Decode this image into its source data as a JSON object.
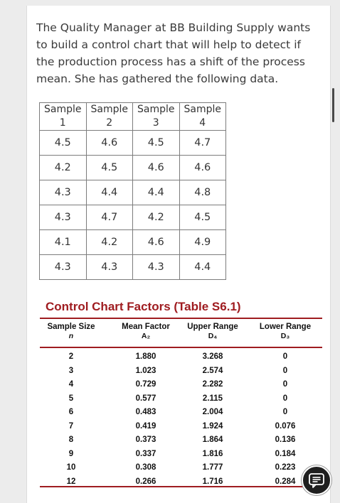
{
  "intro_text": "The Quality Manager at BB Building Supply wants to build a control chart that will help to detect if the production process has a shift of the process mean. She has gathered the following data.",
  "sample_table": {
    "header_top": [
      "Sample",
      "Sample",
      "Sample",
      "Sample"
    ],
    "header_bottom": [
      "1",
      "2",
      "3",
      "4"
    ],
    "rows": [
      [
        "4.5",
        "4.6",
        "4.5",
        "4.7"
      ],
      [
        "4.2",
        "4.5",
        "4.6",
        "4.6"
      ],
      [
        "4.3",
        "4.4",
        "4.4",
        "4.8"
      ],
      [
        "4.3",
        "4.7",
        "4.2",
        "4.5"
      ],
      [
        "4.1",
        "4.2",
        "4.6",
        "4.9"
      ],
      [
        "4.3",
        "4.3",
        "4.3",
        "4.4"
      ]
    ]
  },
  "factors": {
    "title": "Control Chart Factors (Table S6.1)",
    "headers": [
      {
        "label": "Sample Size",
        "symbol": "n"
      },
      {
        "label": "Mean Factor",
        "symbol": "A₂"
      },
      {
        "label": "Upper Range",
        "symbol": "D₄"
      },
      {
        "label": "Lower Range",
        "symbol": "D₃"
      }
    ],
    "rows": [
      [
        "2",
        "1.880",
        "3.268",
        "0"
      ],
      [
        "3",
        "1.023",
        "2.574",
        "0"
      ],
      [
        "4",
        "0.729",
        "2.282",
        "0"
      ],
      [
        "5",
        "0.577",
        "2.115",
        "0"
      ],
      [
        "6",
        "0.483",
        "2.004",
        "0"
      ],
      [
        "7",
        "0.419",
        "1.924",
        "0.076"
      ],
      [
        "8",
        "0.373",
        "1.864",
        "0.136"
      ],
      [
        "9",
        "0.337",
        "1.816",
        "0.184"
      ],
      [
        "10",
        "0.308",
        "1.777",
        "0.223"
      ],
      [
        "12",
        "0.266",
        "1.716",
        "0.284"
      ]
    ],
    "accent_color": "#9f1c20"
  },
  "floating_button": {
    "icon": "chat-icon"
  }
}
